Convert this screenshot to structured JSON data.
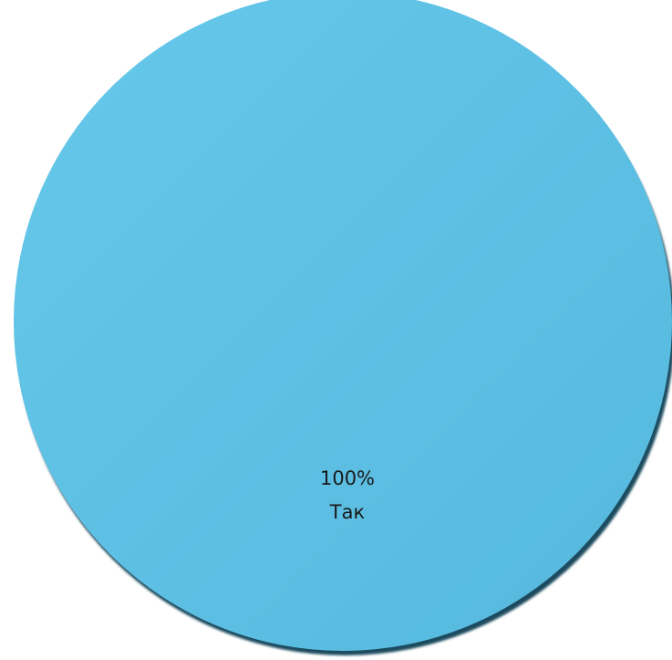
{
  "chart_data": {
    "type": "pie",
    "categories": [
      "Так"
    ],
    "values": [
      100
    ],
    "data_labels": [
      {
        "percent": "100%",
        "category": "Так"
      }
    ],
    "colors": [
      "#5cc0e3"
    ],
    "shadow_color": "#1e4b5e",
    "title": "",
    "legend": "none"
  }
}
